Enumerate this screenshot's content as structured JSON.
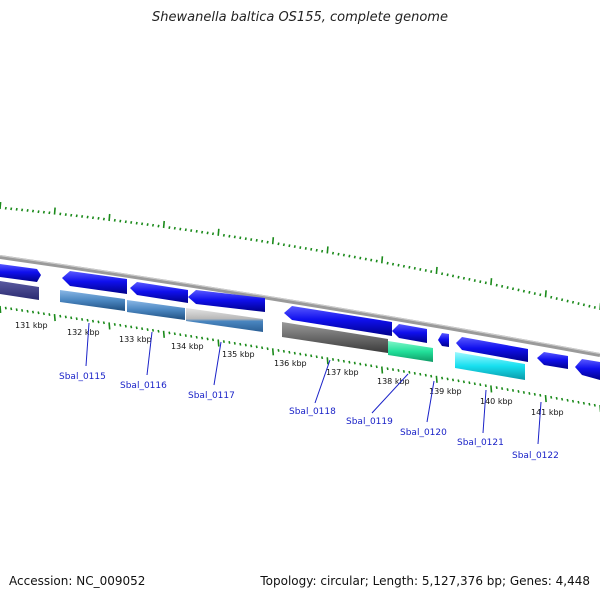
{
  "title": "Shewanella baltica OS155, complete genome",
  "footer": {
    "accession": "Accession: NC_009052",
    "summary": "Topology: circular; Length: 5,127,376 bp; Genes: 4,448"
  },
  "colors": {
    "backbone": "#7f7f7f",
    "tick": "#1a8a1a",
    "label_line": "#1a22c8",
    "gene_label": "#1a22c8"
  },
  "tick_labels": [
    "131 kbp",
    "132 kbp",
    "133 kbp",
    "134 kbp",
    "135 kbp",
    "136 kbp",
    "137 kbp",
    "138 kbp",
    "139 kbp",
    "140 kbp",
    "141 kbp"
  ],
  "features": [
    {
      "name": "Sbal_0115",
      "strand": "reverse",
      "color": "#4a86c0"
    },
    {
      "name": "Sbal_0116",
      "strand": "reverse",
      "color": "#3f7eb8"
    },
    {
      "name": "Sbal_0117",
      "strand": "reverse",
      "color": "#9aa6b4"
    },
    {
      "name": "Sbal_0118",
      "strand": "reverse",
      "color": "#6a6a6a"
    },
    {
      "name": "Sbal_0119",
      "strand": "reverse",
      "color": "#22e09a"
    },
    {
      "name": "Sbal_0120",
      "strand": "reverse",
      "color": "#1010ee"
    },
    {
      "name": "Sbal_0121",
      "strand": "forward",
      "color": "#18e0f0"
    },
    {
      "name": "Sbal_0122",
      "strand": "reverse",
      "color": "#1010ee"
    }
  ]
}
